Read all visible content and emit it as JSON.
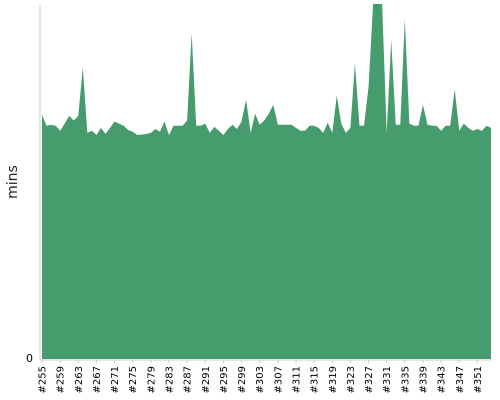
{
  "chart_data": {
    "type": "area",
    "title": "",
    "xlabel": "",
    "ylabel": "mins",
    "ylim": [
      0,
      100
    ],
    "grid": false,
    "legend": "none",
    "y_ticks": [
      {
        "value": 0,
        "label": "0"
      }
    ],
    "x_tick_labels": [
      "#255",
      "#259",
      "#263",
      "#267",
      "#271",
      "#275",
      "#279",
      "#283",
      "#287",
      "#291",
      "#295",
      "#299",
      "#303",
      "#307",
      "#311",
      "#315",
      "#319",
      "#323",
      "#327",
      "#331",
      "#335",
      "#339",
      "#343",
      "#347",
      "#351"
    ],
    "x": [
      255,
      256,
      257,
      258,
      259,
      260,
      261,
      262,
      263,
      264,
      265,
      266,
      267,
      268,
      269,
      270,
      271,
      272,
      273,
      274,
      275,
      276,
      277,
      278,
      279,
      280,
      281,
      282,
      283,
      284,
      285,
      286,
      287,
      288,
      289,
      290,
      291,
      292,
      293,
      294,
      295,
      296,
      297,
      298,
      299,
      300,
      301,
      302,
      303,
      304,
      305,
      306,
      307,
      308,
      309,
      310,
      311,
      312,
      313,
      314,
      315,
      316,
      317,
      318,
      319,
      320,
      321,
      322,
      323,
      324,
      325,
      326,
      327,
      328,
      329,
      330,
      331,
      332,
      333,
      334,
      335,
      336,
      337,
      338,
      339,
      340,
      341,
      342,
      343,
      344,
      345,
      346,
      347,
      348,
      349,
      350,
      351,
      352,
      353,
      354
    ],
    "series": [
      {
        "name": "",
        "color": "#469c6c",
        "values": [
          68.8,
          65.7,
          66.0,
          65.7,
          64.3,
          66.3,
          68.5,
          67.2,
          68.5,
          82.2,
          63.7,
          64.3,
          63.1,
          65.1,
          63.4,
          65.1,
          66.9,
          66.3,
          65.7,
          64.5,
          64.0,
          63.1,
          63.2,
          63.4,
          63.7,
          64.8,
          64.0,
          66.9,
          63.1,
          65.7,
          65.7,
          65.7,
          67.2,
          91.8,
          65.7,
          65.7,
          66.3,
          63.7,
          65.4,
          64.3,
          63.1,
          64.8,
          66.0,
          64.8,
          66.9,
          73.1,
          63.7,
          69.1,
          66.0,
          67.2,
          69.1,
          71.6,
          66.0,
          66.0,
          66.0,
          66.0,
          65.1,
          64.3,
          64.3,
          65.7,
          65.7,
          65.1,
          63.7,
          66.6,
          63.7,
          74.2,
          66.3,
          63.7,
          65.1,
          83.3,
          65.7,
          65.7,
          76.7,
          100,
          100,
          100,
          63.7,
          89.9,
          66.0,
          66.0,
          95.8,
          66.3,
          65.7,
          65.7,
          71.6,
          66.0,
          65.7,
          65.7,
          64.3,
          65.7,
          65.7,
          75.9,
          64.3,
          66.3,
          65.1,
          64.3,
          64.8,
          64.3,
          65.7,
          65.1
        ]
      }
    ]
  }
}
